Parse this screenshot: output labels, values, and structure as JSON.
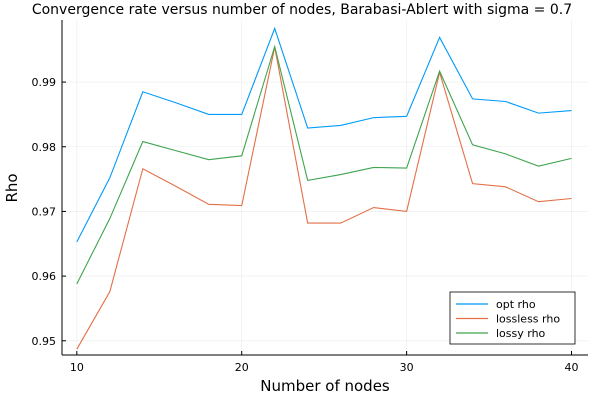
{
  "chart_data": {
    "type": "line",
    "title": "Convergence rate versus number of nodes, Barabasi-Ablert with sigma = 0.7",
    "xlabel": "Number of nodes",
    "ylabel": "Rho",
    "x": [
      10,
      12,
      14,
      16,
      18,
      20,
      22,
      24,
      26,
      28,
      30,
      32,
      34,
      36,
      38,
      40
    ],
    "xlim": [
      9.1,
      41.0
    ],
    "ylim": [
      0.9478,
      0.9996
    ],
    "xticks": [
      10,
      20,
      30,
      40
    ],
    "yticks": [
      0.95,
      0.96,
      0.97,
      0.98,
      0.99
    ],
    "xtick_labels": [
      "10",
      "20",
      "30",
      "40"
    ],
    "ytick_labels": [
      "0.95",
      "0.96",
      "0.97",
      "0.98",
      "0.99"
    ],
    "grid": true,
    "legend_position": "bottom-right",
    "series": [
      {
        "name": "opt rho",
        "color": "#009AFA",
        "values": [
          0.9653,
          0.9752,
          0.9885,
          0.9868,
          0.985,
          0.985,
          0.9983,
          0.9829,
          0.9833,
          0.9845,
          0.9847,
          0.9969,
          0.9874,
          0.987,
          0.9852,
          0.9856
        ]
      },
      {
        "name": "lossless rho",
        "color": "#E36F47",
        "values": [
          0.9487,
          0.9576,
          0.9766,
          0.9739,
          0.9711,
          0.9709,
          0.9954,
          0.9682,
          0.9682,
          0.9706,
          0.97,
          0.9915,
          0.9743,
          0.9738,
          0.9715,
          0.972
        ]
      },
      {
        "name": "lossy rho",
        "color": "#3EA44E",
        "values": [
          0.9588,
          0.9689,
          0.9808,
          0.9794,
          0.978,
          0.9786,
          0.9955,
          0.9748,
          0.9757,
          0.9768,
          0.9767,
          0.9917,
          0.9803,
          0.9789,
          0.977,
          0.9782
        ]
      }
    ]
  }
}
